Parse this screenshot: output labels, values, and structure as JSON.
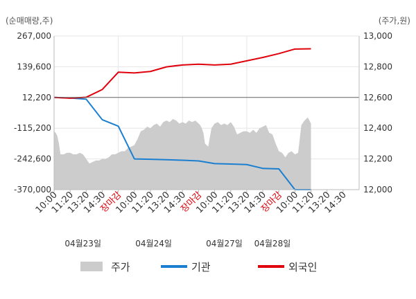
{
  "colors": {
    "price_area": "#cccccc",
    "institution": "#1a7fd1",
    "foreign": "#e0000b",
    "grid": "#e6e6e6",
    "close_label": "#e0000b"
  },
  "chart_data": {
    "type": "line",
    "left_axis_unit": "(순매매량,주)",
    "right_axis_unit": "(주가,원)",
    "left_axis_ticks": [
      "267,000",
      "139,600",
      "12,200",
      "-115,200",
      "-242,600",
      "-370,000"
    ],
    "right_axis_ticks": [
      "13,000",
      "12,800",
      "12,600",
      "12,400",
      "12,200",
      "12,000"
    ],
    "ylim_left": [
      -370000,
      267000
    ],
    "ylim_right": [
      12000,
      13000
    ],
    "x_labels": [
      "10:00",
      "11:20",
      "13:20",
      "14:30",
      "장마감",
      "10:00",
      "11:20",
      "13:20",
      "14:30",
      "장마감",
      "10:00",
      "11:20",
      "13:20",
      "14:30",
      "장마감",
      "10:00",
      "11:20",
      "13:20",
      "14:30"
    ],
    "dates": [
      "04월23일",
      "04월24일",
      "04월27일",
      "04월28일"
    ],
    "series": [
      {
        "name": "주가",
        "kind": "area",
        "axis": "right",
        "x": [
          0.0,
          0.1,
          0.2,
          0.3,
          0.4,
          0.6,
          0.8,
          1.0,
          1.2,
          1.4,
          1.6,
          1.8,
          2.0,
          2.2,
          2.4,
          2.6,
          2.8,
          3.0,
          3.2,
          3.4,
          3.6,
          3.8,
          4.0,
          4.2,
          4.4,
          4.6,
          4.8,
          5.0,
          5.2,
          5.4,
          5.6,
          5.8,
          6.0,
          6.2,
          6.4,
          6.6,
          6.8,
          7.0,
          7.2,
          7.4,
          7.6,
          7.8,
          8.0,
          8.2,
          8.4,
          8.6,
          8.8,
          9.0,
          9.1,
          9.2,
          9.3,
          9.4,
          9.6,
          9.8,
          10.0,
          10.2,
          10.4,
          10.6,
          10.8,
          11.0,
          11.2,
          11.4,
          11.6,
          11.8,
          12.0,
          12.2,
          12.4,
          12.6,
          12.8,
          13.0,
          13.2,
          13.4,
          13.6,
          13.8,
          14.0,
          14.2,
          14.4,
          14.6,
          14.8,
          15.0,
          15.2,
          15.4,
          15.6,
          15.8,
          16.0
        ],
        "values": [
          12380,
          12370,
          12350,
          12300,
          12230,
          12230,
          12240,
          12240,
          12230,
          12230,
          12240,
          12230,
          12200,
          12170,
          12180,
          12190,
          12190,
          12200,
          12200,
          12210,
          12230,
          12230,
          12240,
          12250,
          12250,
          12270,
          12280,
          12290,
          12330,
          12380,
          12390,
          12410,
          12400,
          12420,
          12430,
          12410,
          12440,
          12450,
          12440,
          12460,
          12450,
          12430,
          12440,
          12430,
          12450,
          12440,
          12450,
          12430,
          12420,
          12400,
          12370,
          12300,
          12280,
          12400,
          12430,
          12440,
          12420,
          12430,
          12420,
          12440,
          12410,
          12360,
          12370,
          12380,
          12380,
          12370,
          12390,
          12370,
          12400,
          12410,
          12420,
          12370,
          12360,
          12300,
          12250,
          12240,
          12210,
          12240,
          12250,
          12230,
          12240,
          12420,
          12450,
          12470,
          12430
        ]
      },
      {
        "name": "기관",
        "kind": "line",
        "axis": "left",
        "x": [
          0.0,
          1.0,
          2.0,
          3.0,
          4.0,
          5.0,
          6.0,
          7.0,
          8.0,
          9.0,
          10.0,
          11.0,
          12.0,
          13.0,
          14.0,
          15.0,
          16.0
        ],
        "values": [
          12200,
          10000,
          5000,
          -80000,
          -107000,
          -242600,
          -244000,
          -246000,
          -248000,
          -251000,
          -262000,
          -264000,
          -266000,
          -282000,
          -284000,
          -370000,
          -370000
        ]
      },
      {
        "name": "외국인",
        "kind": "line",
        "axis": "left",
        "x": [
          0.0,
          1.0,
          2.0,
          3.0,
          4.0,
          5.0,
          6.0,
          7.0,
          8.0,
          9.0,
          10.0,
          11.0,
          12.0,
          13.0,
          14.0,
          15.0,
          16.0
        ],
        "values": [
          12200,
          9000,
          13000,
          45000,
          117000,
          114000,
          120000,
          139000,
          147000,
          150000,
          147000,
          150000,
          164000,
          178000,
          194000,
          213000,
          214000
        ]
      }
    ],
    "legend": {
      "placement": "bottom",
      "items": [
        {
          "label": "주가",
          "kind": "area"
        },
        {
          "label": "기관",
          "kind": "line"
        },
        {
          "label": "외국인",
          "kind": "line"
        }
      ]
    },
    "grid": true
  }
}
